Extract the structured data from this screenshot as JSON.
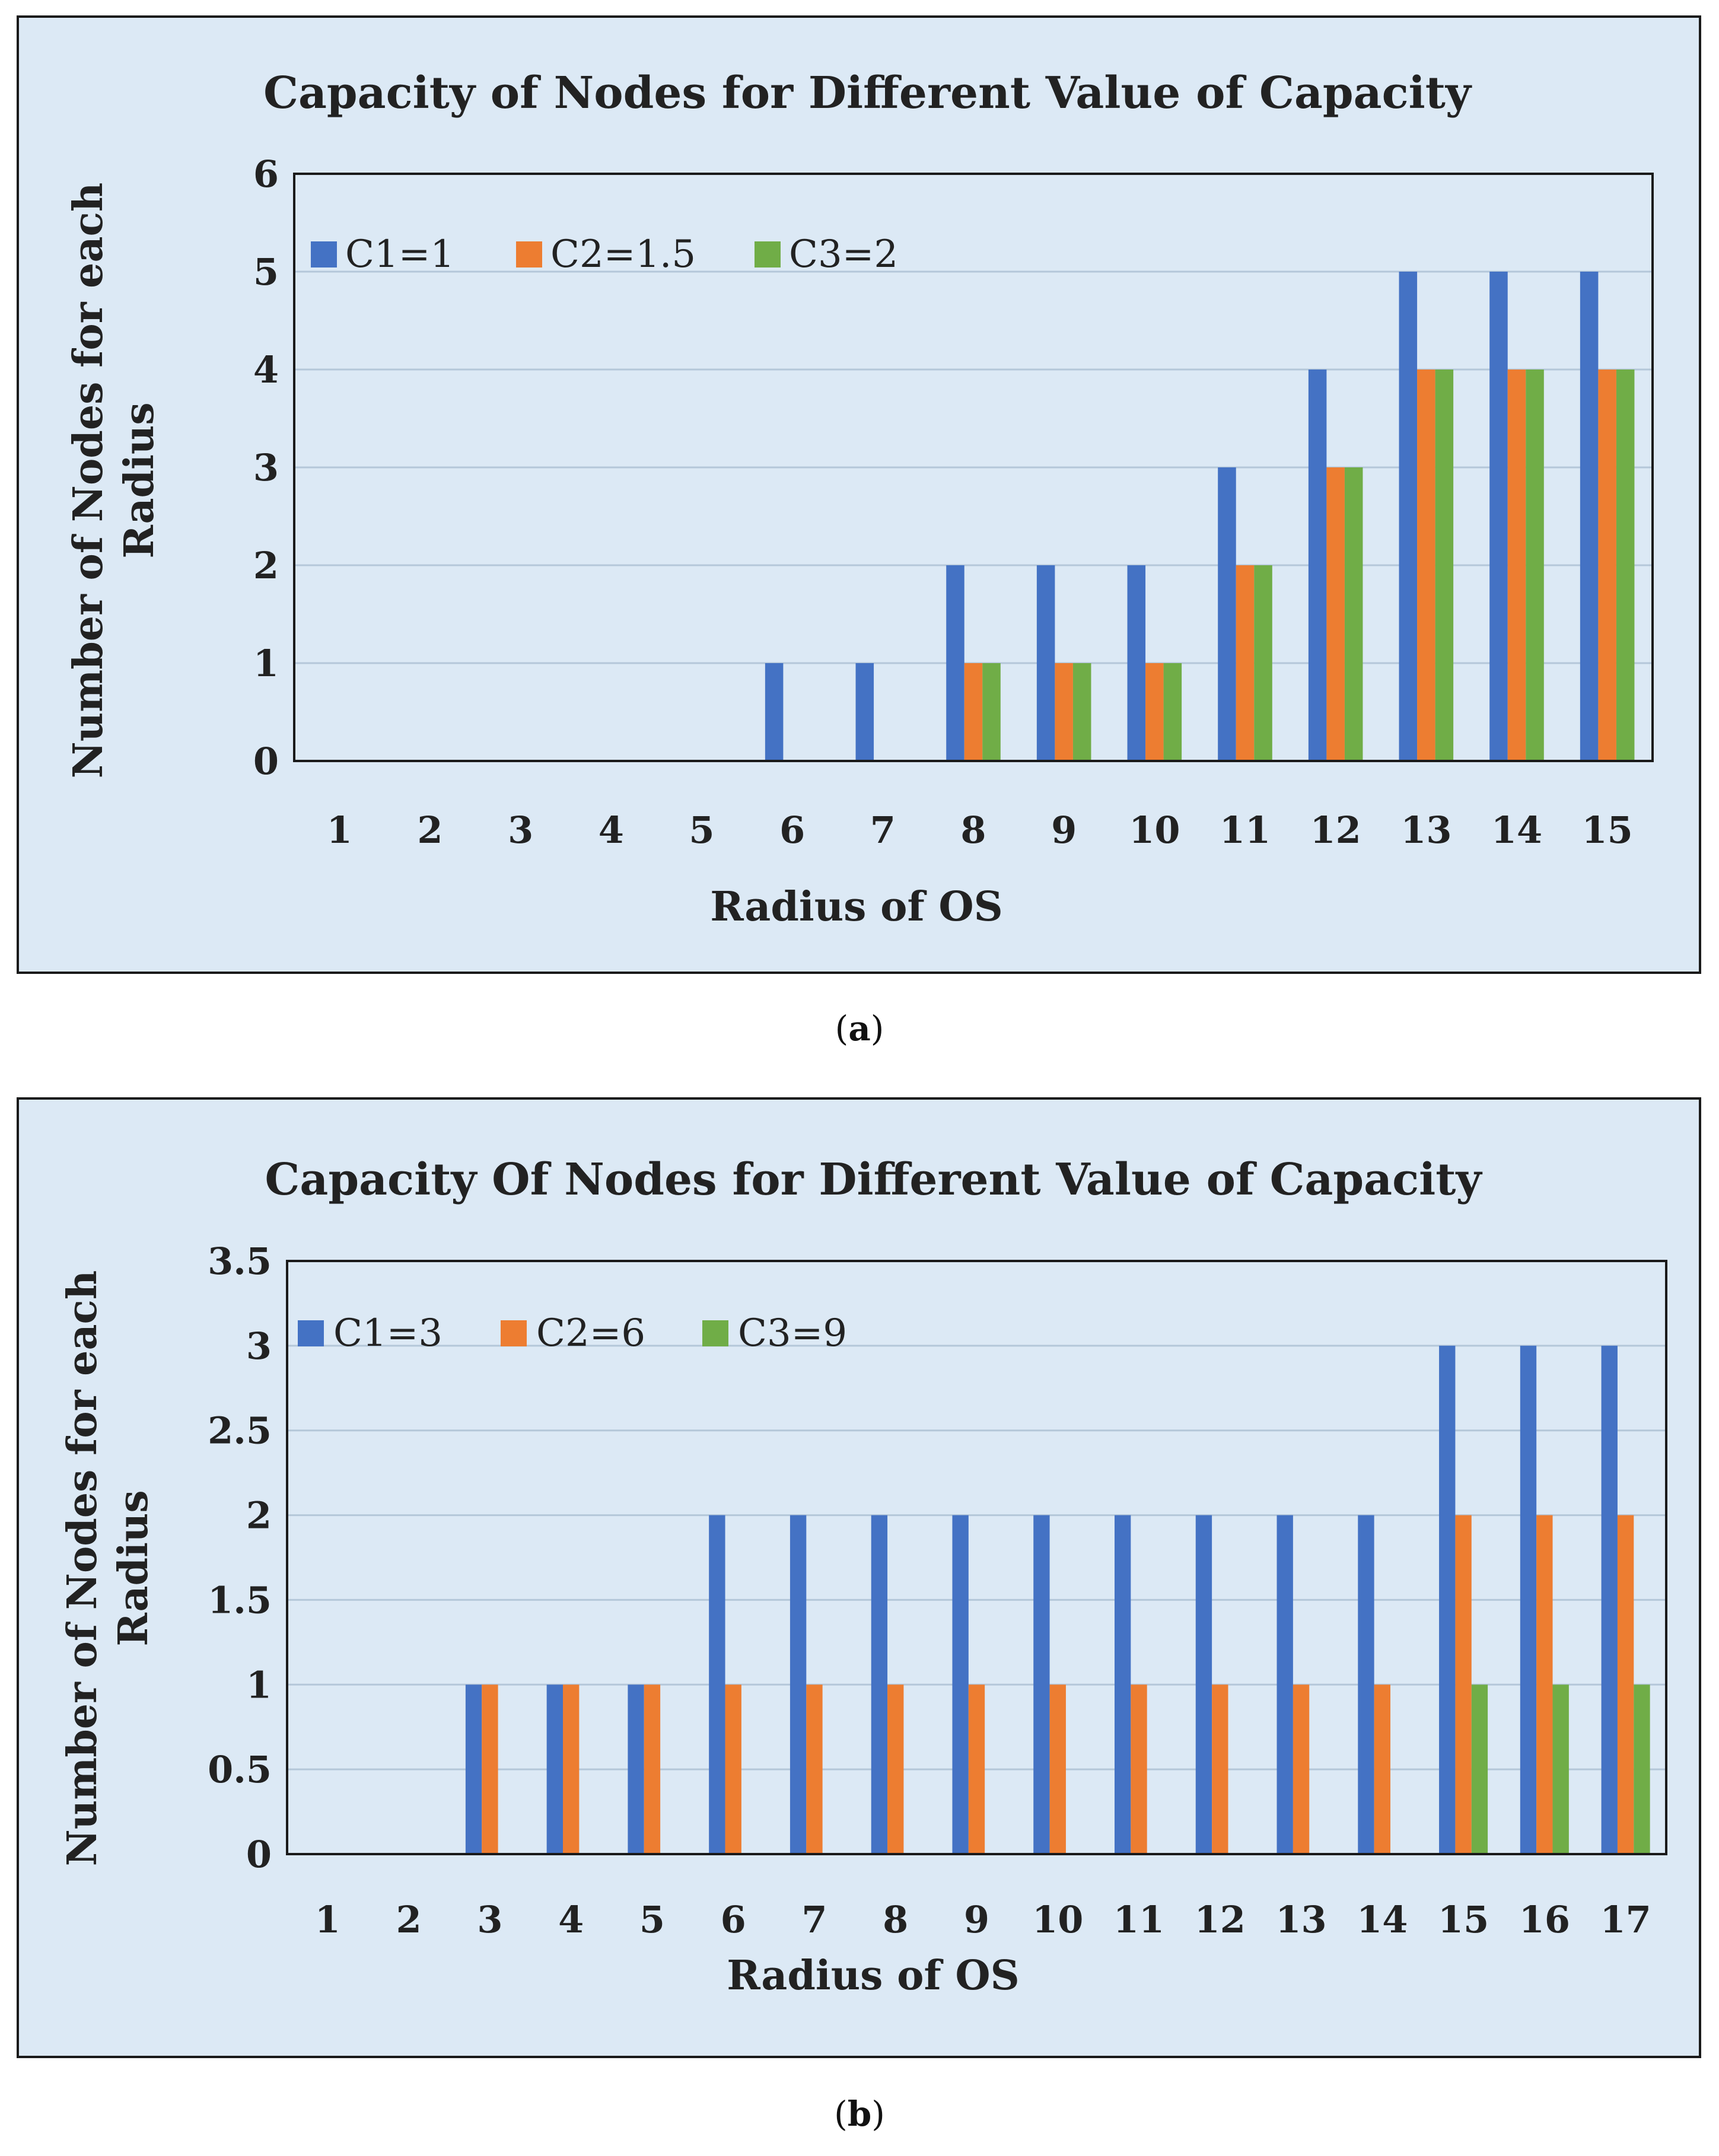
{
  "colors": {
    "c1": "#4472c4",
    "c2": "#ed7d31",
    "c3": "#70ad47",
    "grid": "#b4c7d9",
    "panel_bg": "#dce9f5"
  },
  "captions": [
    {
      "open": "(",
      "letter": "a",
      "close": ")"
    },
    {
      "open": "(",
      "letter": "b",
      "close": ")"
    }
  ],
  "chart_data": [
    {
      "type": "bar",
      "title": "Capacity of Nodes for Different Value of Capacity",
      "xlabel": "Radius of OS",
      "ylabel_lines": [
        "Number of Nodes for each",
        "Radius"
      ],
      "ylim": [
        0,
        6
      ],
      "yticks": [
        "0",
        "1",
        "2",
        "3",
        "4",
        "5",
        "6"
      ],
      "categories": [
        "1",
        "2",
        "3",
        "4",
        "5",
        "6",
        "7",
        "8",
        "9",
        "10",
        "11",
        "12",
        "13",
        "14",
        "15"
      ],
      "legend_position": "top-left",
      "series": [
        {
          "name": "C1=1",
          "values": [
            0,
            0,
            0,
            0,
            0,
            1,
            1,
            2,
            2,
            2,
            3,
            4,
            5,
            5,
            5
          ]
        },
        {
          "name": "C2=1.5",
          "values": [
            0,
            0,
            0,
            0,
            0,
            0,
            0,
            1,
            1,
            1,
            2,
            3,
            4,
            4,
            4
          ]
        },
        {
          "name": "C3=2",
          "values": [
            0,
            0,
            0,
            0,
            0,
            0,
            0,
            1,
            1,
            1,
            2,
            3,
            4,
            4,
            4
          ]
        }
      ]
    },
    {
      "type": "bar",
      "title": "Capacity Of Nodes for Different Value of Capacity",
      "xlabel": "Radius of OS",
      "ylabel_lines": [
        "Number of Nodes for each",
        "Radius"
      ],
      "ylim": [
        0,
        3.5
      ],
      "yticks": [
        "0",
        "0.5",
        "1",
        "1.5",
        "2",
        "2.5",
        "3",
        "3.5"
      ],
      "categories": [
        "1",
        "2",
        "3",
        "4",
        "5",
        "6",
        "7",
        "8",
        "9",
        "10",
        "11",
        "12",
        "13",
        "14",
        "15",
        "16",
        "17"
      ],
      "legend_position": "top-left",
      "series": [
        {
          "name": "C1=3",
          "values": [
            0,
            0,
            1,
            1,
            1,
            2,
            2,
            2,
            2,
            2,
            2,
            2,
            2,
            2,
            3,
            3,
            3
          ]
        },
        {
          "name": "C2=6",
          "values": [
            0,
            0,
            1,
            1,
            1,
            1,
            1,
            1,
            1,
            1,
            1,
            1,
            1,
            1,
            2,
            2,
            2
          ]
        },
        {
          "name": "C3=9",
          "values": [
            0,
            0,
            0,
            0,
            0,
            0,
            0,
            0,
            0,
            0,
            0,
            0,
            0,
            0,
            1,
            1,
            1
          ]
        }
      ]
    }
  ]
}
